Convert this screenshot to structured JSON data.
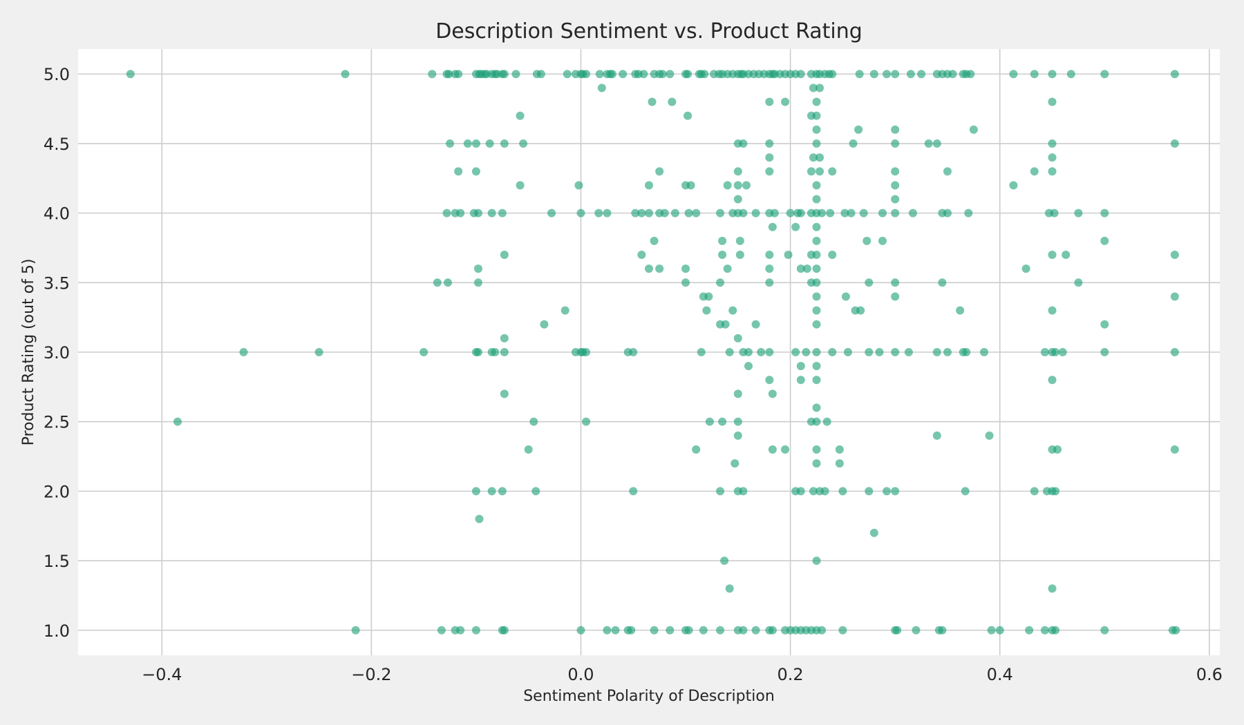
{
  "chart_data": {
    "type": "scatter",
    "title": "Description Sentiment vs. Product Rating",
    "xlabel": "Sentiment Polarity of Description",
    "ylabel": "Product Rating (out of 5)",
    "xlim": [
      -0.48,
      0.61
    ],
    "ylim": [
      0.82,
      5.18
    ],
    "xticks": [
      -0.4,
      -0.2,
      0.0,
      0.2,
      0.4,
      0.6
    ],
    "xtick_labels": [
      "−0.4",
      "−0.2",
      "0.0",
      "0.2",
      "0.4",
      "0.6"
    ],
    "yticks": [
      1.0,
      1.5,
      2.0,
      2.5,
      3.0,
      3.5,
      4.0,
      4.5,
      5.0
    ],
    "ytick_labels": [
      "1.0",
      "1.5",
      "2.0",
      "2.5",
      "3.0",
      "3.5",
      "4.0",
      "4.5",
      "5.0"
    ],
    "grid": true,
    "marker_color": "#1b9e77",
    "background_color": "#ffffff",
    "figure_color": "#f0f0f0",
    "points": [
      [
        -0.43,
        5.0
      ],
      [
        -0.225,
        5.0
      ],
      [
        -0.142,
        5.0
      ],
      [
        -0.128,
        5.0
      ],
      [
        -0.126,
        5.0
      ],
      [
        -0.12,
        5.0
      ],
      [
        -0.117,
        5.0
      ],
      [
        -0.1,
        5.0
      ],
      [
        -0.097,
        5.0
      ],
      [
        -0.095,
        5.0
      ],
      [
        -0.092,
        5.0
      ],
      [
        -0.09,
        5.0
      ],
      [
        -0.085,
        5.0
      ],
      [
        -0.082,
        5.0
      ],
      [
        -0.08,
        5.0
      ],
      [
        -0.075,
        5.0
      ],
      [
        -0.073,
        5.0
      ],
      [
        -0.062,
        5.0
      ],
      [
        -0.042,
        5.0
      ],
      [
        -0.038,
        5.0
      ],
      [
        -0.013,
        5.0
      ],
      [
        -0.005,
        5.0
      ],
      [
        0.0,
        5.0
      ],
      [
        0.002,
        5.0
      ],
      [
        0.005,
        5.0
      ],
      [
        0.018,
        5.0
      ],
      [
        0.025,
        5.0
      ],
      [
        0.028,
        5.0
      ],
      [
        0.03,
        5.0
      ],
      [
        0.04,
        5.0
      ],
      [
        0.052,
        5.0
      ],
      [
        0.055,
        5.0
      ],
      [
        0.06,
        5.0
      ],
      [
        0.07,
        5.0
      ],
      [
        0.075,
        5.0
      ],
      [
        0.078,
        5.0
      ],
      [
        0.085,
        5.0
      ],
      [
        0.1,
        5.0
      ],
      [
        0.102,
        5.0
      ],
      [
        0.113,
        5.0
      ],
      [
        0.115,
        5.0
      ],
      [
        0.118,
        5.0
      ],
      [
        0.127,
        5.0
      ],
      [
        0.132,
        5.0
      ],
      [
        0.135,
        5.0
      ],
      [
        0.14,
        5.0
      ],
      [
        0.145,
        5.0
      ],
      [
        0.15,
        5.0
      ],
      [
        0.153,
        5.0
      ],
      [
        0.155,
        5.0
      ],
      [
        0.16,
        5.0
      ],
      [
        0.165,
        5.0
      ],
      [
        0.17,
        5.0
      ],
      [
        0.175,
        5.0
      ],
      [
        0.18,
        5.0
      ],
      [
        0.183,
        5.0
      ],
      [
        0.185,
        5.0
      ],
      [
        0.19,
        5.0
      ],
      [
        0.195,
        5.0
      ],
      [
        0.2,
        5.0
      ],
      [
        0.205,
        5.0
      ],
      [
        0.21,
        5.0
      ],
      [
        0.22,
        5.0
      ],
      [
        0.225,
        5.0
      ],
      [
        0.228,
        5.0
      ],
      [
        0.233,
        5.0
      ],
      [
        0.237,
        5.0
      ],
      [
        0.24,
        5.0
      ],
      [
        0.266,
        5.0
      ],
      [
        0.28,
        5.0
      ],
      [
        0.292,
        5.0
      ],
      [
        0.3,
        5.0
      ],
      [
        0.315,
        5.0
      ],
      [
        0.325,
        5.0
      ],
      [
        0.34,
        5.0
      ],
      [
        0.345,
        5.0
      ],
      [
        0.35,
        5.0
      ],
      [
        0.355,
        5.0
      ],
      [
        0.365,
        5.0
      ],
      [
        0.368,
        5.0
      ],
      [
        0.372,
        5.0
      ],
      [
        0.413,
        5.0
      ],
      [
        0.433,
        5.0
      ],
      [
        0.45,
        5.0
      ],
      [
        0.468,
        5.0
      ],
      [
        0.5,
        5.0
      ],
      [
        0.567,
        5.0
      ],
      [
        0.02,
        4.9
      ],
      [
        0.222,
        4.9
      ],
      [
        0.228,
        4.9
      ],
      [
        0.068,
        4.8
      ],
      [
        0.087,
        4.8
      ],
      [
        0.18,
        4.8
      ],
      [
        0.195,
        4.8
      ],
      [
        0.225,
        4.8
      ],
      [
        0.45,
        4.8
      ],
      [
        -0.058,
        4.7
      ],
      [
        0.102,
        4.7
      ],
      [
        0.22,
        4.7
      ],
      [
        0.225,
        4.7
      ],
      [
        0.225,
        4.6
      ],
      [
        0.265,
        4.6
      ],
      [
        0.3,
        4.6
      ],
      [
        0.375,
        4.6
      ],
      [
        -0.125,
        4.5
      ],
      [
        -0.108,
        4.5
      ],
      [
        -0.1,
        4.5
      ],
      [
        -0.087,
        4.5
      ],
      [
        -0.073,
        4.5
      ],
      [
        -0.055,
        4.5
      ],
      [
        0.15,
        4.5
      ],
      [
        0.155,
        4.5
      ],
      [
        0.18,
        4.5
      ],
      [
        0.225,
        4.5
      ],
      [
        0.26,
        4.5
      ],
      [
        0.3,
        4.5
      ],
      [
        0.332,
        4.5
      ],
      [
        0.34,
        4.5
      ],
      [
        0.45,
        4.5
      ],
      [
        0.567,
        4.5
      ],
      [
        0.18,
        4.4
      ],
      [
        0.222,
        4.4
      ],
      [
        0.228,
        4.4
      ],
      [
        0.45,
        4.4
      ],
      [
        -0.117,
        4.3
      ],
      [
        -0.1,
        4.3
      ],
      [
        0.075,
        4.3
      ],
      [
        0.15,
        4.3
      ],
      [
        0.18,
        4.3
      ],
      [
        0.22,
        4.3
      ],
      [
        0.228,
        4.3
      ],
      [
        0.24,
        4.3
      ],
      [
        0.3,
        4.3
      ],
      [
        0.35,
        4.3
      ],
      [
        0.433,
        4.3
      ],
      [
        0.45,
        4.3
      ],
      [
        -0.058,
        4.2
      ],
      [
        -0.002,
        4.2
      ],
      [
        0.065,
        4.2
      ],
      [
        0.1,
        4.2
      ],
      [
        0.105,
        4.2
      ],
      [
        0.14,
        4.2
      ],
      [
        0.15,
        4.2
      ],
      [
        0.158,
        4.2
      ],
      [
        0.225,
        4.2
      ],
      [
        0.3,
        4.2
      ],
      [
        0.413,
        4.2
      ],
      [
        0.15,
        4.1
      ],
      [
        0.225,
        4.1
      ],
      [
        0.3,
        4.1
      ],
      [
        -0.128,
        4.0
      ],
      [
        -0.12,
        4.0
      ],
      [
        -0.115,
        4.0
      ],
      [
        -0.102,
        4.0
      ],
      [
        -0.098,
        4.0
      ],
      [
        -0.085,
        4.0
      ],
      [
        -0.075,
        4.0
      ],
      [
        -0.028,
        4.0
      ],
      [
        0.0,
        4.0
      ],
      [
        0.017,
        4.0
      ],
      [
        0.025,
        4.0
      ],
      [
        0.052,
        4.0
      ],
      [
        0.058,
        4.0
      ],
      [
        0.065,
        4.0
      ],
      [
        0.075,
        4.0
      ],
      [
        0.08,
        4.0
      ],
      [
        0.09,
        4.0
      ],
      [
        0.103,
        4.0
      ],
      [
        0.11,
        4.0
      ],
      [
        0.133,
        4.0
      ],
      [
        0.145,
        4.0
      ],
      [
        0.15,
        4.0
      ],
      [
        0.155,
        4.0
      ],
      [
        0.167,
        4.0
      ],
      [
        0.18,
        4.0
      ],
      [
        0.185,
        4.0
      ],
      [
        0.2,
        4.0
      ],
      [
        0.207,
        4.0
      ],
      [
        0.21,
        4.0
      ],
      [
        0.22,
        4.0
      ],
      [
        0.225,
        4.0
      ],
      [
        0.23,
        4.0
      ],
      [
        0.238,
        4.0
      ],
      [
        0.252,
        4.0
      ],
      [
        0.258,
        4.0
      ],
      [
        0.27,
        4.0
      ],
      [
        0.288,
        4.0
      ],
      [
        0.3,
        4.0
      ],
      [
        0.317,
        4.0
      ],
      [
        0.345,
        4.0
      ],
      [
        0.35,
        4.0
      ],
      [
        0.37,
        4.0
      ],
      [
        0.447,
        4.0
      ],
      [
        0.452,
        4.0
      ],
      [
        0.475,
        4.0
      ],
      [
        0.5,
        4.0
      ],
      [
        0.183,
        3.9
      ],
      [
        0.205,
        3.9
      ],
      [
        0.225,
        3.9
      ],
      [
        0.07,
        3.8
      ],
      [
        0.135,
        3.8
      ],
      [
        0.152,
        3.8
      ],
      [
        0.225,
        3.8
      ],
      [
        0.273,
        3.8
      ],
      [
        0.288,
        3.8
      ],
      [
        0.5,
        3.8
      ],
      [
        -0.073,
        3.7
      ],
      [
        0.058,
        3.7
      ],
      [
        0.135,
        3.7
      ],
      [
        0.152,
        3.7
      ],
      [
        0.18,
        3.7
      ],
      [
        0.198,
        3.7
      ],
      [
        0.22,
        3.7
      ],
      [
        0.225,
        3.7
      ],
      [
        0.24,
        3.7
      ],
      [
        0.45,
        3.7
      ],
      [
        0.463,
        3.7
      ],
      [
        0.567,
        3.7
      ],
      [
        -0.098,
        3.6
      ],
      [
        0.065,
        3.6
      ],
      [
        0.075,
        3.6
      ],
      [
        0.1,
        3.6
      ],
      [
        0.14,
        3.6
      ],
      [
        0.18,
        3.6
      ],
      [
        0.21,
        3.6
      ],
      [
        0.216,
        3.6
      ],
      [
        0.225,
        3.6
      ],
      [
        0.425,
        3.6
      ],
      [
        -0.137,
        3.5
      ],
      [
        -0.127,
        3.5
      ],
      [
        -0.098,
        3.5
      ],
      [
        0.1,
        3.5
      ],
      [
        0.133,
        3.5
      ],
      [
        0.18,
        3.5
      ],
      [
        0.22,
        3.5
      ],
      [
        0.225,
        3.5
      ],
      [
        0.275,
        3.5
      ],
      [
        0.3,
        3.5
      ],
      [
        0.345,
        3.5
      ],
      [
        0.475,
        3.5
      ],
      [
        0.117,
        3.4
      ],
      [
        0.122,
        3.4
      ],
      [
        0.225,
        3.4
      ],
      [
        0.253,
        3.4
      ],
      [
        0.3,
        3.4
      ],
      [
        0.567,
        3.4
      ],
      [
        -0.015,
        3.3
      ],
      [
        0.12,
        3.3
      ],
      [
        0.145,
        3.3
      ],
      [
        0.225,
        3.3
      ],
      [
        0.262,
        3.3
      ],
      [
        0.267,
        3.3
      ],
      [
        0.362,
        3.3
      ],
      [
        0.45,
        3.3
      ],
      [
        -0.035,
        3.2
      ],
      [
        0.133,
        3.2
      ],
      [
        0.138,
        3.2
      ],
      [
        0.167,
        3.2
      ],
      [
        0.225,
        3.2
      ],
      [
        0.5,
        3.2
      ],
      [
        -0.073,
        3.1
      ],
      [
        0.15,
        3.1
      ],
      [
        -0.322,
        3.0
      ],
      [
        -0.25,
        3.0
      ],
      [
        -0.15,
        3.0
      ],
      [
        -0.1,
        3.0
      ],
      [
        -0.098,
        3.0
      ],
      [
        -0.085,
        3.0
      ],
      [
        -0.082,
        3.0
      ],
      [
        -0.073,
        3.0
      ],
      [
        -0.005,
        3.0
      ],
      [
        0.0,
        3.0
      ],
      [
        0.002,
        3.0
      ],
      [
        0.005,
        3.0
      ],
      [
        0.045,
        3.0
      ],
      [
        0.05,
        3.0
      ],
      [
        0.115,
        3.0
      ],
      [
        0.142,
        3.0
      ],
      [
        0.155,
        3.0
      ],
      [
        0.16,
        3.0
      ],
      [
        0.172,
        3.0
      ],
      [
        0.18,
        3.0
      ],
      [
        0.205,
        3.0
      ],
      [
        0.215,
        3.0
      ],
      [
        0.225,
        3.0
      ],
      [
        0.24,
        3.0
      ],
      [
        0.255,
        3.0
      ],
      [
        0.275,
        3.0
      ],
      [
        0.285,
        3.0
      ],
      [
        0.3,
        3.0
      ],
      [
        0.313,
        3.0
      ],
      [
        0.34,
        3.0
      ],
      [
        0.35,
        3.0
      ],
      [
        0.365,
        3.0
      ],
      [
        0.368,
        3.0
      ],
      [
        0.385,
        3.0
      ],
      [
        0.443,
        3.0
      ],
      [
        0.45,
        3.0
      ],
      [
        0.453,
        3.0
      ],
      [
        0.46,
        3.0
      ],
      [
        0.5,
        3.0
      ],
      [
        0.567,
        3.0
      ],
      [
        0.16,
        2.9
      ],
      [
        0.21,
        2.9
      ],
      [
        0.225,
        2.9
      ],
      [
        0.18,
        2.8
      ],
      [
        0.21,
        2.8
      ],
      [
        0.225,
        2.8
      ],
      [
        0.45,
        2.8
      ],
      [
        -0.073,
        2.7
      ],
      [
        0.15,
        2.7
      ],
      [
        0.183,
        2.7
      ],
      [
        0.225,
        2.6
      ],
      [
        -0.385,
        2.5
      ],
      [
        -0.045,
        2.5
      ],
      [
        0.005,
        2.5
      ],
      [
        0.123,
        2.5
      ],
      [
        0.135,
        2.5
      ],
      [
        0.15,
        2.5
      ],
      [
        0.22,
        2.5
      ],
      [
        0.225,
        2.5
      ],
      [
        0.235,
        2.5
      ],
      [
        0.15,
        2.4
      ],
      [
        0.34,
        2.4
      ],
      [
        0.39,
        2.4
      ],
      [
        -0.05,
        2.3
      ],
      [
        0.11,
        2.3
      ],
      [
        0.183,
        2.3
      ],
      [
        0.195,
        2.3
      ],
      [
        0.225,
        2.3
      ],
      [
        0.247,
        2.3
      ],
      [
        0.45,
        2.3
      ],
      [
        0.455,
        2.3
      ],
      [
        0.567,
        2.3
      ],
      [
        0.147,
        2.2
      ],
      [
        0.225,
        2.2
      ],
      [
        0.247,
        2.2
      ],
      [
        -0.1,
        2.0
      ],
      [
        -0.085,
        2.0
      ],
      [
        -0.075,
        2.0
      ],
      [
        -0.043,
        2.0
      ],
      [
        0.05,
        2.0
      ],
      [
        0.133,
        2.0
      ],
      [
        0.15,
        2.0
      ],
      [
        0.155,
        2.0
      ],
      [
        0.205,
        2.0
      ],
      [
        0.21,
        2.0
      ],
      [
        0.222,
        2.0
      ],
      [
        0.228,
        2.0
      ],
      [
        0.233,
        2.0
      ],
      [
        0.25,
        2.0
      ],
      [
        0.275,
        2.0
      ],
      [
        0.292,
        2.0
      ],
      [
        0.3,
        2.0
      ],
      [
        0.367,
        2.0
      ],
      [
        0.433,
        2.0
      ],
      [
        0.445,
        2.0
      ],
      [
        0.45,
        2.0
      ],
      [
        0.453,
        2.0
      ],
      [
        -0.097,
        1.8
      ],
      [
        0.28,
        1.7
      ],
      [
        0.137,
        1.5
      ],
      [
        0.225,
        1.5
      ],
      [
        0.142,
        1.3
      ],
      [
        0.45,
        1.3
      ],
      [
        -0.215,
        1.0
      ],
      [
        -0.133,
        1.0
      ],
      [
        -0.12,
        1.0
      ],
      [
        -0.115,
        1.0
      ],
      [
        -0.1,
        1.0
      ],
      [
        -0.075,
        1.0
      ],
      [
        -0.073,
        1.0
      ],
      [
        0.0,
        1.0
      ],
      [
        0.025,
        1.0
      ],
      [
        0.033,
        1.0
      ],
      [
        0.045,
        1.0
      ],
      [
        0.048,
        1.0
      ],
      [
        0.07,
        1.0
      ],
      [
        0.085,
        1.0
      ],
      [
        0.1,
        1.0
      ],
      [
        0.103,
        1.0
      ],
      [
        0.117,
        1.0
      ],
      [
        0.133,
        1.0
      ],
      [
        0.15,
        1.0
      ],
      [
        0.155,
        1.0
      ],
      [
        0.167,
        1.0
      ],
      [
        0.18,
        1.0
      ],
      [
        0.183,
        1.0
      ],
      [
        0.195,
        1.0
      ],
      [
        0.2,
        1.0
      ],
      [
        0.205,
        1.0
      ],
      [
        0.21,
        1.0
      ],
      [
        0.215,
        1.0
      ],
      [
        0.22,
        1.0
      ],
      [
        0.225,
        1.0
      ],
      [
        0.23,
        1.0
      ],
      [
        0.25,
        1.0
      ],
      [
        0.3,
        1.0
      ],
      [
        0.302,
        1.0
      ],
      [
        0.32,
        1.0
      ],
      [
        0.342,
        1.0
      ],
      [
        0.345,
        1.0
      ],
      [
        0.392,
        1.0
      ],
      [
        0.4,
        1.0
      ],
      [
        0.428,
        1.0
      ],
      [
        0.443,
        1.0
      ],
      [
        0.45,
        1.0
      ],
      [
        0.453,
        1.0
      ],
      [
        0.5,
        1.0
      ],
      [
        0.565,
        1.0
      ],
      [
        0.568,
        1.0
      ]
    ]
  }
}
